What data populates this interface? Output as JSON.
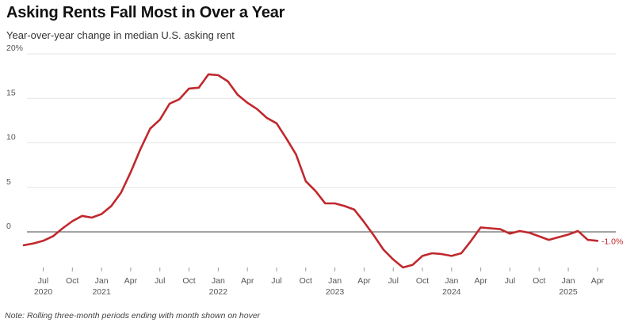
{
  "header": {
    "title": "Asking Rents Fall Most in Over a Year",
    "subtitle": "Year-over-year change in median U.S. asking rent"
  },
  "footer": {
    "note": "Note: Rolling three-month periods ending with month shown on hover"
  },
  "colors": {
    "line": "#c0282d",
    "grid": "#e6e6e6",
    "zero_line": "#444444",
    "tick_text": "#555555"
  },
  "chart_data": {
    "type": "line",
    "title": "Asking Rents Fall Most in Over a Year",
    "subtitle": "Year-over-year change in median U.S. asking rent",
    "xlabel": "",
    "ylabel": "",
    "ylim": [
      -3,
      20
    ],
    "y_ticks": [
      {
        "value": 20,
        "label": "20%"
      },
      {
        "value": 15,
        "label": "15"
      },
      {
        "value": 10,
        "label": "10"
      },
      {
        "value": 5,
        "label": "5"
      },
      {
        "value": 0,
        "label": "0"
      }
    ],
    "x_ticks": [
      {
        "date": "2020-07",
        "month": "Jul",
        "year": "2020"
      },
      {
        "date": "2020-10",
        "month": "Oct",
        "year": ""
      },
      {
        "date": "2021-01",
        "month": "Jan",
        "year": "2021"
      },
      {
        "date": "2021-04",
        "month": "Apr",
        "year": ""
      },
      {
        "date": "2021-07",
        "month": "Jul",
        "year": ""
      },
      {
        "date": "2021-10",
        "month": "Oct",
        "year": ""
      },
      {
        "date": "2022-01",
        "month": "Jan",
        "year": "2022"
      },
      {
        "date": "2022-04",
        "month": "Apr",
        "year": ""
      },
      {
        "date": "2022-07",
        "month": "Jul",
        "year": ""
      },
      {
        "date": "2022-10",
        "month": "Oct",
        "year": ""
      },
      {
        "date": "2023-01",
        "month": "Jan",
        "year": "2023"
      },
      {
        "date": "2023-04",
        "month": "Apr",
        "year": ""
      },
      {
        "date": "2023-07",
        "month": "Jul",
        "year": ""
      },
      {
        "date": "2023-10",
        "month": "Oct",
        "year": ""
      },
      {
        "date": "2024-01",
        "month": "Jan",
        "year": "2024"
      },
      {
        "date": "2024-04",
        "month": "Apr",
        "year": ""
      },
      {
        "date": "2024-07",
        "month": "Jul",
        "year": ""
      },
      {
        "date": "2024-10",
        "month": "Oct",
        "year": ""
      },
      {
        "date": "2025-01",
        "month": "Jan",
        "year": "2025"
      },
      {
        "date": "2025-04",
        "month": "Apr",
        "year": ""
      }
    ],
    "grid": true,
    "series": [
      {
        "end_label": "-1.0%",
        "points": [
          {
            "x": "2020-05",
            "y": -1.5
          },
          {
            "x": "2020-06",
            "y": -1.3
          },
          {
            "x": "2020-07",
            "y": -1.0
          },
          {
            "x": "2020-08",
            "y": -0.5
          },
          {
            "x": "2020-09",
            "y": 0.4
          },
          {
            "x": "2020-10",
            "y": 1.2
          },
          {
            "x": "2020-11",
            "y": 1.8
          },
          {
            "x": "2020-12",
            "y": 1.6
          },
          {
            "x": "2021-01",
            "y": 2.0
          },
          {
            "x": "2021-02",
            "y": 2.9
          },
          {
            "x": "2021-03",
            "y": 4.4
          },
          {
            "x": "2021-04",
            "y": 6.7
          },
          {
            "x": "2021-05",
            "y": 9.3
          },
          {
            "x": "2021-06",
            "y": 11.6
          },
          {
            "x": "2021-07",
            "y": 12.6
          },
          {
            "x": "2021-08",
            "y": 14.4
          },
          {
            "x": "2021-09",
            "y": 14.9
          },
          {
            "x": "2021-10",
            "y": 16.1
          },
          {
            "x": "2021-11",
            "y": 16.2
          },
          {
            "x": "2021-12",
            "y": 17.7
          },
          {
            "x": "2022-01",
            "y": 17.6
          },
          {
            "x": "2022-02",
            "y": 16.9
          },
          {
            "x": "2022-03",
            "y": 15.4
          },
          {
            "x": "2022-04",
            "y": 14.5
          },
          {
            "x": "2022-05",
            "y": 13.8
          },
          {
            "x": "2022-06",
            "y": 12.8
          },
          {
            "x": "2022-07",
            "y": 12.2
          },
          {
            "x": "2022-08",
            "y": 10.5
          },
          {
            "x": "2022-09",
            "y": 8.7
          },
          {
            "x": "2022-10",
            "y": 5.7
          },
          {
            "x": "2022-11",
            "y": 4.6
          },
          {
            "x": "2022-12",
            "y": 3.2
          },
          {
            "x": "2023-01",
            "y": 3.2
          },
          {
            "x": "2023-02",
            "y": 2.9
          },
          {
            "x": "2023-03",
            "y": 2.5
          },
          {
            "x": "2023-04",
            "y": 1.1
          },
          {
            "x": "2023-05",
            "y": -0.4
          },
          {
            "x": "2023-06",
            "y": -2.0
          },
          {
            "x": "2023-07",
            "y": -3.1
          },
          {
            "x": "2023-08",
            "y": -4.0
          },
          {
            "x": "2023-09",
            "y": -3.7
          },
          {
            "x": "2023-10",
            "y": -2.7
          },
          {
            "x": "2023-11",
            "y": -2.4
          },
          {
            "x": "2023-12",
            "y": -2.5
          },
          {
            "x": "2024-01",
            "y": -2.7
          },
          {
            "x": "2024-02",
            "y": -2.4
          },
          {
            "x": "2024-03",
            "y": -1.0
          },
          {
            "x": "2024-04",
            "y": 0.5
          },
          {
            "x": "2024-05",
            "y": 0.4
          },
          {
            "x": "2024-06",
            "y": 0.3
          },
          {
            "x": "2024-07",
            "y": -0.2
          },
          {
            "x": "2024-08",
            "y": 0.1
          },
          {
            "x": "2024-09",
            "y": -0.1
          },
          {
            "x": "2024-10",
            "y": -0.5
          },
          {
            "x": "2024-11",
            "y": -0.9
          },
          {
            "x": "2024-12",
            "y": -0.6
          },
          {
            "x": "2025-01",
            "y": -0.3
          },
          {
            "x": "2025-02",
            "y": 0.1
          },
          {
            "x": "2025-03",
            "y": -0.9
          },
          {
            "x": "2025-04",
            "y": -1.0
          }
        ]
      }
    ]
  }
}
